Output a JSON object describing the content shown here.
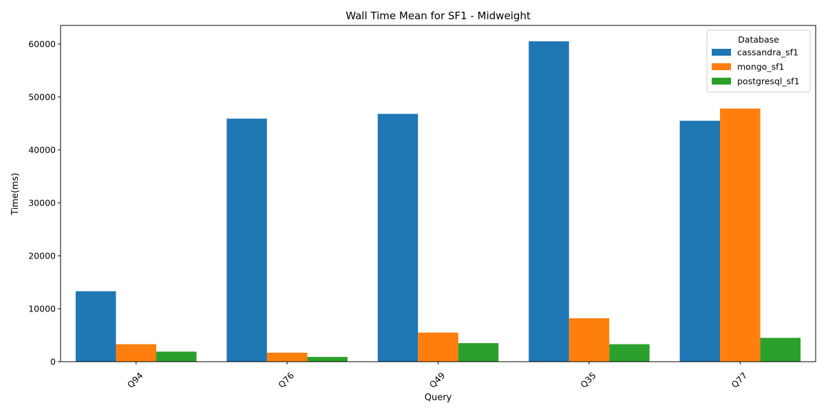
{
  "chart_data": {
    "type": "bar",
    "title": "Wall Time Mean for SF1 - Midweight",
    "xlabel": "Query",
    "ylabel": "Time(ms)",
    "categories": [
      "Q94",
      "Q76",
      "Q49",
      "Q35",
      "Q77"
    ],
    "series": [
      {
        "name": "cassandra_sf1",
        "color": "#1f77b4",
        "values": [
          13300,
          45900,
          46800,
          60500,
          45500
        ]
      },
      {
        "name": "mongo_sf1",
        "color": "#ff7f0e",
        "values": [
          3300,
          1700,
          5500,
          8200,
          47800
        ]
      },
      {
        "name": "postgresql_sf1",
        "color": "#2ca02c",
        "values": [
          1900,
          900,
          3500,
          3300,
          4500
        ]
      }
    ],
    "ylim": [
      0,
      63500
    ],
    "yticks": [
      0,
      10000,
      20000,
      30000,
      40000,
      50000,
      60000
    ],
    "legend": {
      "title": "Database",
      "position": "top-right"
    },
    "grid": false
  }
}
